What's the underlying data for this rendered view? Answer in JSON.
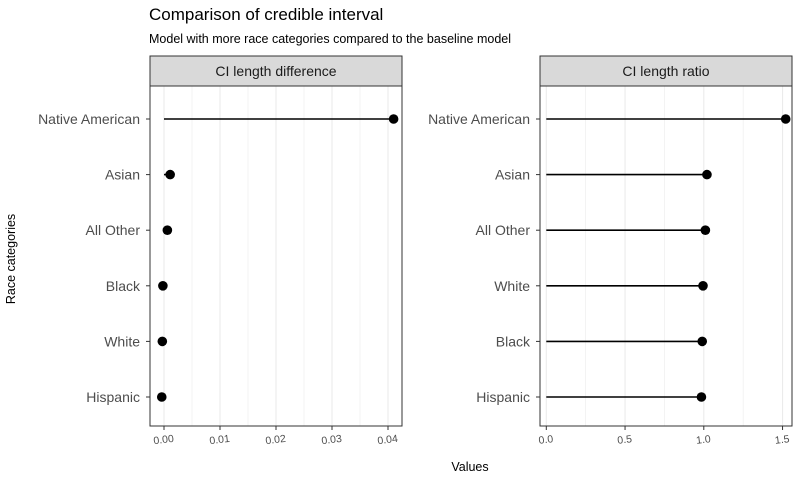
{
  "title": "Comparison of credible interval",
  "subtitle": "Model with more race categories compared to the baseline model",
  "xlabel": "Values",
  "ylabel": "Race categories",
  "chart_data": [
    {
      "type": "lollipop",
      "panel_title": "CI length difference",
      "xlim": [
        -0.0025,
        0.0425
      ],
      "x_ticks": [
        0.0,
        0.01,
        0.02,
        0.03,
        0.04
      ],
      "x_tick_labels": [
        "0.00",
        "0.01",
        "0.02",
        "0.03",
        "0.04"
      ],
      "grid": true,
      "categories": [
        "Native American",
        "Asian",
        "All Other",
        "Black",
        "White",
        "Hispanic"
      ],
      "values": [
        0.041,
        0.0011,
        0.0006,
        -0.0002,
        -0.0003,
        -0.0004
      ]
    },
    {
      "type": "lollipop",
      "panel_title": "CI length ratio",
      "xlim": [
        -0.04,
        1.56
      ],
      "x_ticks": [
        0.0,
        0.5,
        1.0,
        1.5
      ],
      "x_tick_labels": [
        "0.0",
        "0.5",
        "1.0",
        "1.5"
      ],
      "grid": true,
      "categories": [
        "Native American",
        "Asian",
        "All Other",
        "White",
        "Black",
        "Hispanic"
      ],
      "values": [
        1.52,
        1.02,
        1.01,
        0.995,
        0.99,
        0.985
      ]
    }
  ],
  "colors": {
    "strip_bg": "#d9d9d9",
    "grid": "#ebebeb",
    "point": "#000000",
    "border": "#333333"
  }
}
